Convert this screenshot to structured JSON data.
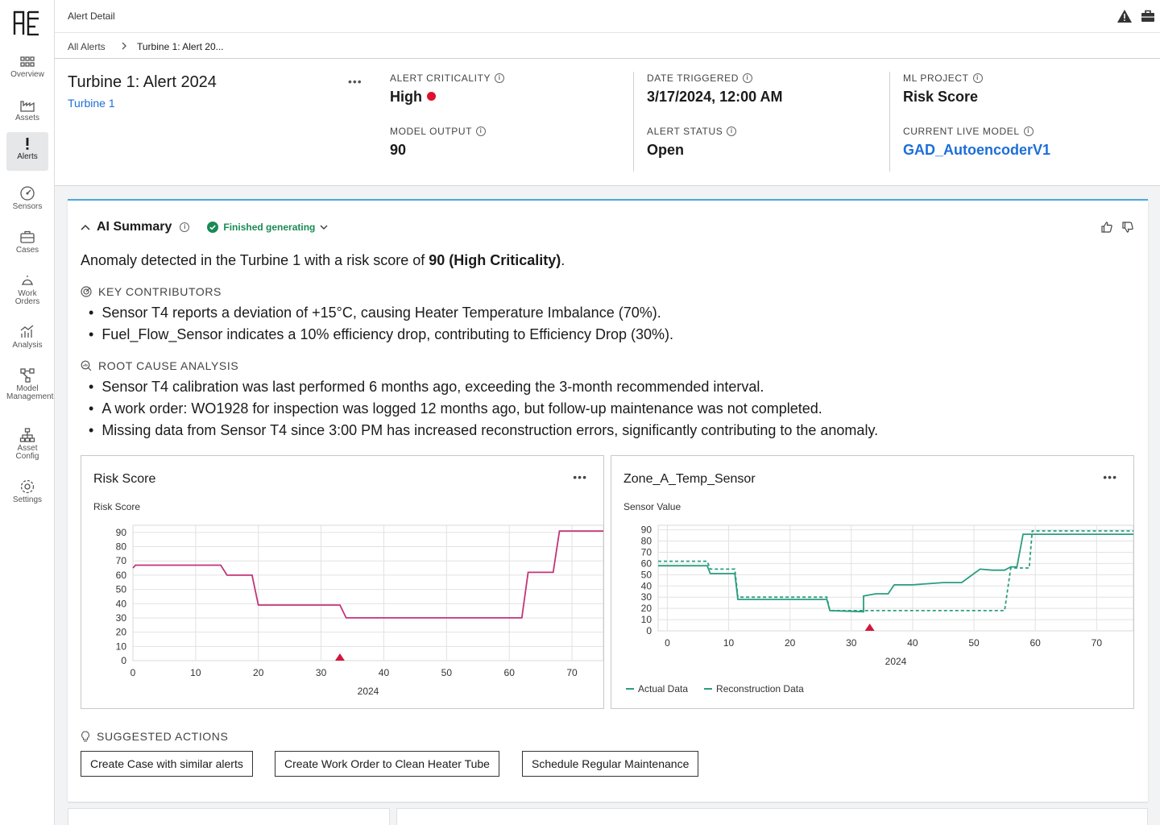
{
  "sidebar": {
    "items": [
      {
        "label": "Overview",
        "icon": "grid-icon"
      },
      {
        "label": "Assets",
        "icon": "factory-icon"
      },
      {
        "label": "Alerts",
        "icon": "exclamation-icon"
      },
      {
        "label": "Sensors",
        "icon": "gauge-icon"
      },
      {
        "label": "Cases",
        "icon": "briefcase-icon"
      },
      {
        "label": "Work Orders",
        "icon": "bell-icon"
      },
      {
        "label": "Analysis",
        "icon": "bar-chart-icon"
      },
      {
        "label": "Model Management",
        "icon": "model-nodes-icon"
      },
      {
        "label": "Asset Config",
        "icon": "hierarchy-icon"
      },
      {
        "label": "Settings",
        "icon": "gear-icon"
      }
    ],
    "active": "Alerts"
  },
  "topbar": {
    "title": "Alert Detail"
  },
  "breadcrumb": {
    "root": "All Alerts",
    "current": "Turbine 1: Alert 20..."
  },
  "alert": {
    "title": "Turbine 1: Alert 2024",
    "asset_link": "Turbine 1",
    "criticality_label": "ALERT CRITICALITY",
    "criticality_value": "High",
    "model_output_label": "MODEL OUTPUT",
    "model_output_value": "90",
    "date_label": "DATE TRIGGERED",
    "date_value": "3/17/2024, 12:00 AM",
    "status_label": "ALERT STATUS",
    "status_value": "Open",
    "ml_project_label": "ML PROJECT",
    "ml_project_value": "Risk Score",
    "live_model_label": "CURRENT LIVE MODEL",
    "live_model_value": "GAD_AutoencoderV1"
  },
  "summary": {
    "title": "AI Summary",
    "status": "Finished generating",
    "intro_prefix": "Anomaly detected in the Turbine 1 with a risk score of ",
    "intro_bold": "90 (High Criticality)",
    "intro_suffix": ".",
    "key_label": "KEY CONTRIBUTORS",
    "key_items": [
      "Sensor T4 reports a deviation of +15°C, causing Heater Temperature Imbalance (70%).",
      "Fuel_Flow_Sensor indicates a 10% efficiency drop, contributing to Efficiency Drop (30%)."
    ],
    "root_label": "ROOT CAUSE ANALYSIS",
    "root_items": [
      "Sensor T4 calibration was last performed 6 months ago, exceeding the 3-month recommended interval.",
      "A work order: WO1928 for inspection was logged 12 months ago, but follow-up maintenance was not completed.",
      "Missing data from Sensor T4 since 3:00 PM has increased reconstruction errors, significantly contributing to the anomaly."
    ],
    "actions_label": "SUGGESTED ACTIONS",
    "actions": [
      "Create Case with similar alerts",
      "Create Work Order to Clean Heater Tube",
      "Schedule Regular Maintenance"
    ]
  },
  "colors": {
    "accent": "#1d6ed8",
    "critical": "#e0102b",
    "risk_line": "#c2347a",
    "sensor_line": "#2a9d80",
    "success": "#1a8a55"
  },
  "chart_data": [
    {
      "type": "line",
      "title": "Risk Score",
      "ylabel": "Risk Score",
      "xlabel": "2024",
      "xlim": [
        0,
        75
      ],
      "ylim": [
        0,
        95
      ],
      "xticks": [
        0,
        10,
        20,
        30,
        40,
        50,
        60,
        70
      ],
      "yticks": [
        0,
        10,
        20,
        30,
        40,
        50,
        60,
        70,
        80,
        90
      ],
      "marker_x": 33,
      "series": [
        {
          "x": [
            0,
            0.4,
            14,
            15,
            19,
            20,
            33,
            34,
            62,
            63,
            67,
            68,
            75
          ],
          "y": [
            65,
            67,
            67,
            60,
            60,
            39,
            39,
            30,
            30,
            62,
            62,
            91,
            91
          ]
        }
      ]
    },
    {
      "type": "line",
      "title": "Zone_A_Temp_Sensor",
      "ylabel": "Sensor Value",
      "xlabel": "2024",
      "xlim": [
        -1.5,
        76
      ],
      "ylim": [
        0,
        94
      ],
      "xticks": [
        0,
        10,
        20,
        30,
        40,
        50,
        60,
        70
      ],
      "yticks": [
        0,
        10,
        20,
        30,
        40,
        50,
        60,
        70,
        80,
        90
      ],
      "marker_x": 33,
      "series": [
        {
          "name": "Actual Data",
          "x": [
            -1.5,
            6.5,
            7,
            11,
            11.5,
            26,
            26.5,
            32,
            32,
            34,
            36,
            37,
            40,
            45,
            48,
            50,
            51,
            53,
            55,
            56,
            57,
            58,
            76
          ],
          "y": [
            58,
            58,
            51,
            51,
            28,
            28,
            18,
            17,
            31,
            33,
            33,
            41,
            41,
            43,
            43,
            51,
            55,
            54,
            54,
            57,
            57,
            86,
            86
          ]
        },
        {
          "name": "Reconstruction Data",
          "x": [
            -1.5,
            6.5,
            7,
            11,
            11.5,
            26,
            26.5,
            55,
            56,
            59,
            59.5,
            76
          ],
          "y": [
            62,
            62,
            55,
            55,
            30,
            30,
            18,
            18,
            56,
            56,
            89,
            89
          ]
        }
      ]
    }
  ]
}
